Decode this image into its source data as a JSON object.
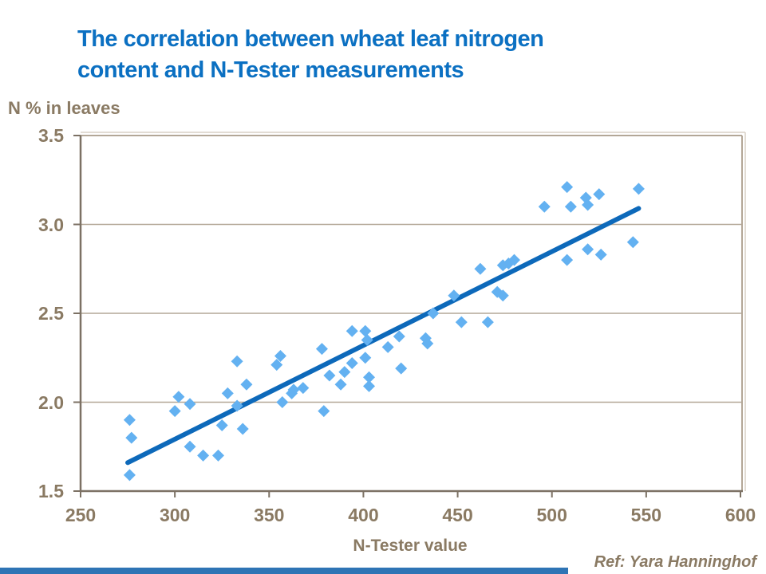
{
  "slide": {
    "title_line1": "The correlation between wheat leaf nitrogen",
    "title_line2": "content and N-Tester measurements",
    "ref_text": "Ref: Yara Hanninghof"
  },
  "colors": {
    "title": "#0B70C2",
    "text": "#8A7A63",
    "axis": "#7C7164",
    "grid": "#B3A797",
    "frame": "#B3A797",
    "frame_light": "#D9D1C6",
    "marker": "#63B1F1",
    "trend_line": "#0D69BA",
    "bottom_bar": "#2E74B5"
  },
  "chart_data": {
    "type": "scatter",
    "title": "The correlation between wheat leaf nitrogen content and N-Tester measurements",
    "xlabel": "N-Tester value",
    "ylabel": "N % in leaves",
    "xlim": [
      250,
      600
    ],
    "ylim": [
      1.5,
      3.5
    ],
    "x_ticks": [
      250,
      300,
      350,
      400,
      450,
      500,
      550,
      600
    ],
    "x_tick_labels": [
      "250",
      "300",
      "350",
      "400",
      "450",
      "500",
      "550",
      "600"
    ],
    "y_ticks": [
      1.5,
      2.0,
      2.5,
      3.0,
      3.5
    ],
    "y_tick_labels": [
      "1.5",
      "2.0",
      "2.5",
      "3.0",
      "3.5"
    ],
    "grid": "horizontal",
    "legend": "none",
    "marker": "diamond",
    "series": [
      {
        "name": "leaf-nitrogen-vs-ntester",
        "type": "scatter",
        "points": [
          [
            276,
            1.9
          ],
          [
            277,
            1.8
          ],
          [
            276,
            1.59
          ],
          [
            300,
            1.95
          ],
          [
            302,
            2.03
          ],
          [
            308,
            1.99
          ],
          [
            308,
            1.75
          ],
          [
            315,
            1.7
          ],
          [
            323,
            1.7
          ],
          [
            325,
            1.87
          ],
          [
            336,
            1.85
          ],
          [
            328,
            2.05
          ],
          [
            333,
            2.23
          ],
          [
            338,
            2.1
          ],
          [
            333,
            1.98
          ],
          [
            354,
            2.21
          ],
          [
            356,
            2.26
          ],
          [
            357,
            2.0
          ],
          [
            362,
            2.05
          ],
          [
            363,
            2.07
          ],
          [
            368,
            2.08
          ],
          [
            378,
            2.3
          ],
          [
            379,
            1.95
          ],
          [
            382,
            2.15
          ],
          [
            388,
            2.1
          ],
          [
            390,
            2.17
          ],
          [
            394,
            2.4
          ],
          [
            401,
            2.4
          ],
          [
            402,
            2.35
          ],
          [
            401,
            2.25
          ],
          [
            394,
            2.22
          ],
          [
            403,
            2.14
          ],
          [
            403,
            2.09
          ],
          [
            413,
            2.31
          ],
          [
            419,
            2.37
          ],
          [
            420,
            2.19
          ],
          [
            433,
            2.36
          ],
          [
            434,
            2.33
          ],
          [
            437,
            2.5
          ],
          [
            448,
            2.6
          ],
          [
            452,
            2.45
          ],
          [
            462,
            2.75
          ],
          [
            466,
            2.45
          ],
          [
            471,
            2.62
          ],
          [
            474,
            2.6
          ],
          [
            474,
            2.77
          ],
          [
            477,
            2.78
          ],
          [
            480,
            2.8
          ],
          [
            496,
            3.1
          ],
          [
            508,
            3.21
          ],
          [
            510,
            3.1
          ],
          [
            518,
            3.15
          ],
          [
            519,
            3.11
          ],
          [
            525,
            3.17
          ],
          [
            519,
            2.86
          ],
          [
            526,
            2.83
          ],
          [
            508,
            2.8
          ],
          [
            543,
            2.9
          ],
          [
            546,
            3.2
          ]
        ]
      },
      {
        "name": "trend-line",
        "type": "line",
        "points": [
          [
            275,
            1.66
          ],
          [
            546,
            3.09
          ]
        ]
      }
    ]
  }
}
